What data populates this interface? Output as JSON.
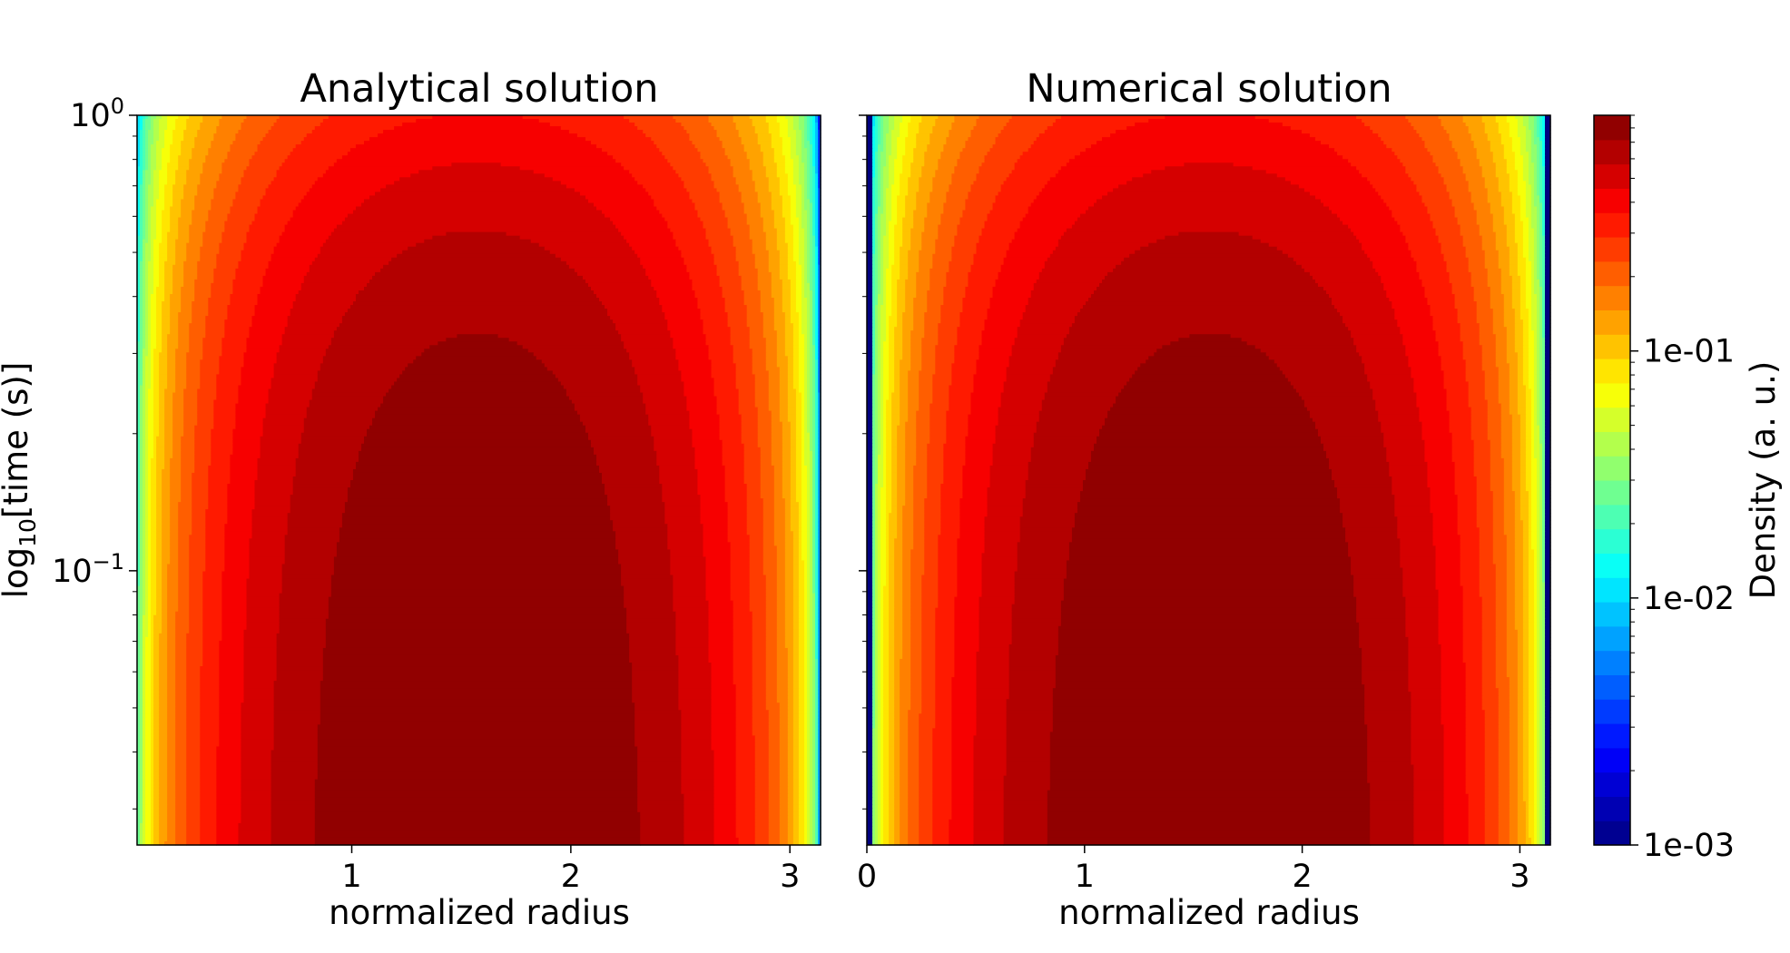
{
  "chart_data": [
    {
      "type": "heatmap",
      "subtype": "filled-contour",
      "title": "Analytical solution",
      "xlabel": "normalized radius",
      "ylabel": "log10[time (s)]",
      "xlim": [
        0.02,
        3.14
      ],
      "xticks": [
        {
          "value": 1,
          "label": "1"
        },
        {
          "value": 2,
          "label": "2"
        },
        {
          "value": 3,
          "label": "3"
        }
      ],
      "ylim": [
        0.025,
        1.0
      ],
      "yscale": "log",
      "yticks": [
        {
          "value": 1.0,
          "label": "10",
          "exp": "0"
        },
        {
          "value": 0.1,
          "label": "10",
          "exp": "−1"
        }
      ],
      "field": "sin(r) * exp(-t)",
      "boundary_zero": false
    },
    {
      "type": "heatmap",
      "subtype": "filled-contour",
      "title": "Numerical solution",
      "xlabel": "normalized radius",
      "ylabel": "",
      "xlim": [
        0.0,
        3.14
      ],
      "xticks": [
        {
          "value": 0,
          "label": "0"
        },
        {
          "value": 1,
          "label": "1"
        },
        {
          "value": 2,
          "label": "2"
        },
        {
          "value": 3,
          "label": "3"
        }
      ],
      "ylim": [
        0.025,
        1.0
      ],
      "yscale": "log",
      "yticks": [
        {
          "value": 1.0,
          "label": "",
          "exp": ""
        },
        {
          "value": 0.1,
          "label": "",
          "exp": ""
        }
      ],
      "field": "sin(r) * exp(-t)",
      "boundary_zero": true
    }
  ],
  "colorbar": {
    "label": "Density (a. u.)",
    "scale": "log",
    "range": [
      0.001,
      0.9
    ],
    "ticks": [
      {
        "value": 0.1,
        "label": "1e-01"
      },
      {
        "value": 0.01,
        "label": "1e-02"
      },
      {
        "value": 0.001,
        "label": "1e-03"
      }
    ],
    "colormap": "jet",
    "n_levels": 30
  }
}
